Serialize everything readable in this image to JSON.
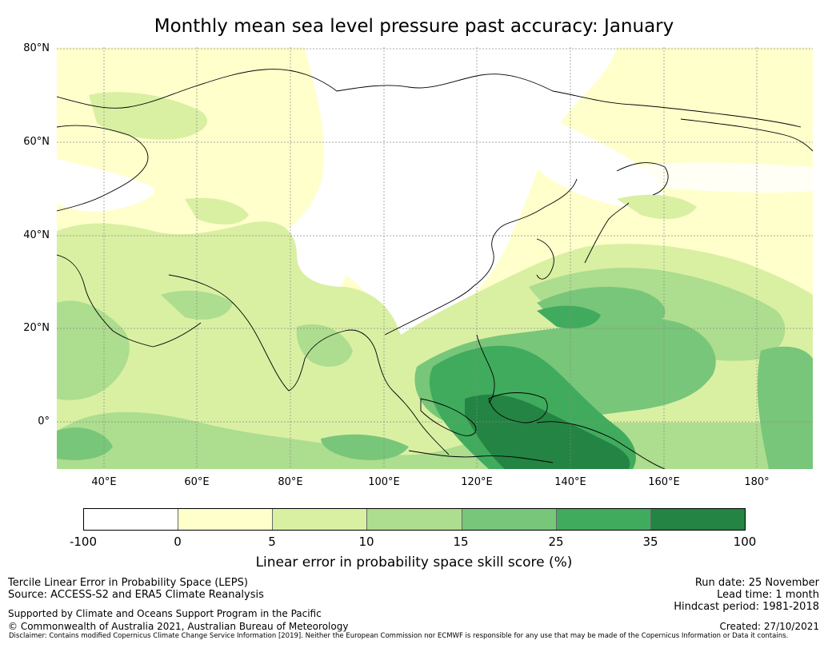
{
  "title": "Monthly mean sea level pressure past accuracy: January",
  "map": {
    "lat_labels": [
      "80°N",
      "60°N",
      "40°N",
      "20°N",
      "0°"
    ],
    "lon_labels": [
      "40°E",
      "60°E",
      "80°E",
      "100°E",
      "120°E",
      "140°E",
      "160°E",
      "180°"
    ],
    "extent": {
      "lon_min": 30,
      "lon_max": 192,
      "lat_min": -10,
      "lat_max": 80
    }
  },
  "colorbar": {
    "ticks": [
      "-100",
      "0",
      "5",
      "10",
      "15",
      "25",
      "35",
      "100"
    ],
    "colors": [
      "#ffffff",
      "#ffffcc",
      "#d9f0a3",
      "#addd8e",
      "#78c679",
      "#41ab5d",
      "#238443"
    ],
    "label": "Linear error in probability space skill score (%)"
  },
  "footer": {
    "left": [
      "Tercile Linear Error in Probability Space (LEPS)",
      "Source: ACCESS-S2 and ERA5 Climate Reanalysis"
    ],
    "supported": "Supported by Climate and Oceans Support Program in the Pacific",
    "copyright": "© Commonwealth of Australia 2021, Australian Bureau of Meteorology",
    "right": [
      "Run date: 25 November",
      "Lead time: 1 month",
      "Hindcast period: 1981-2018"
    ],
    "created": "Created: 27/10/2021",
    "disclaimer": "Disclaimer: Contains modified Copernicus Climate Change Service Information [2019]. Neither the European Commission nor ECMWF is responsible for any use that may be made of the Copernicus Information or Data it contains."
  }
}
